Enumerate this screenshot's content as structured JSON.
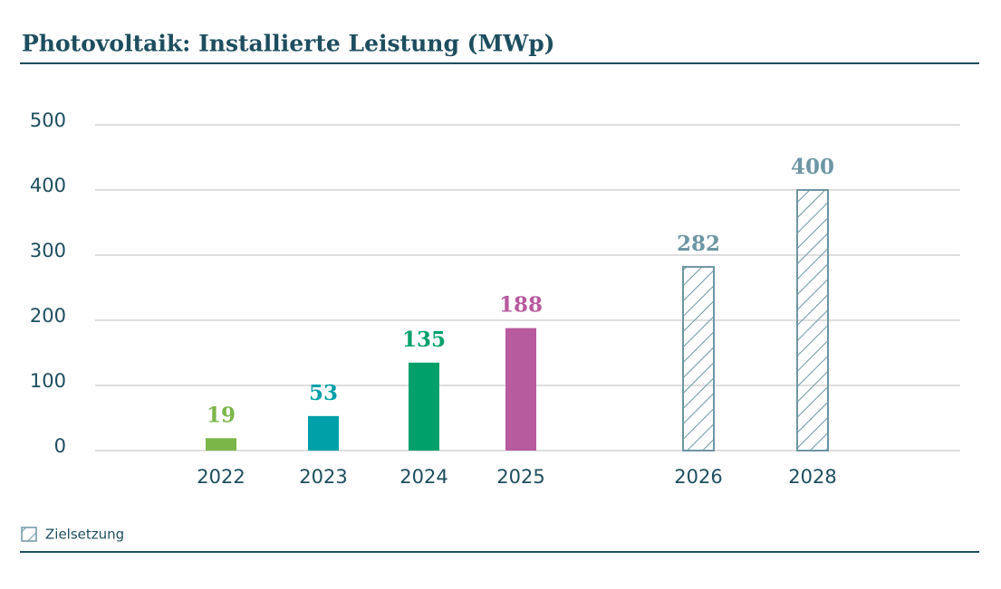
{
  "chart_data": {
    "type": "bar",
    "title": "Photovoltaik: Installierte Leistung (MWp)",
    "categories": [
      "2022",
      "2023",
      "2024",
      "2025",
      "2026",
      "2028"
    ],
    "values": [
      19,
      53,
      135,
      188,
      282,
      400
    ],
    "colors": [
      "#7ab648",
      "#00a0a8",
      "#00a06a",
      "#b85a9e",
      "#6d96a4",
      "#6d96a4"
    ],
    "hatched": [
      false,
      false,
      false,
      false,
      true,
      true
    ],
    "legend": "Zielsetzung",
    "ylim": [
      0,
      500
    ],
    "yticks": [
      0,
      100,
      200,
      300,
      400,
      500
    ],
    "grid": true
  }
}
